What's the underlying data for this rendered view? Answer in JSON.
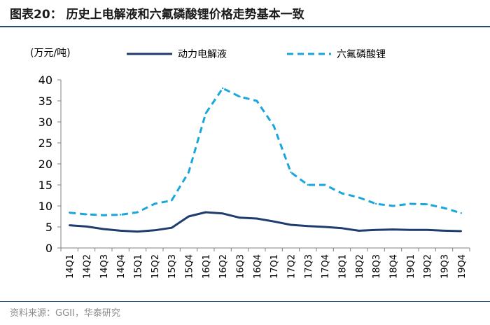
{
  "figure": {
    "title": "图表20：  历史上电解液和六氟磷酸锂价格走势基本一致",
    "source": "资料来源：GGII，华泰研究"
  },
  "chart_data": {
    "type": "line",
    "unit_label": "(万元/吨)",
    "categories": [
      "14Q1",
      "14Q2",
      "14Q3",
      "14Q4",
      "15Q1",
      "15Q2",
      "15Q3",
      "15Q4",
      "16Q1",
      "16Q2",
      "16Q3",
      "16Q4",
      "17Q1",
      "17Q2",
      "17Q3",
      "17Q4",
      "18Q1",
      "18Q2",
      "18Q3",
      "18Q4",
      "19Q1",
      "19Q2",
      "19Q3",
      "19Q4"
    ],
    "ylim": [
      0,
      40
    ],
    "yticks": [
      0,
      5,
      10,
      15,
      20,
      25,
      30,
      35,
      40
    ],
    "series": [
      {
        "name": "动力电解液",
        "color": "#1f3c6e",
        "style": "solid",
        "values": [
          5.4,
          5.1,
          4.5,
          4.1,
          3.9,
          4.2,
          4.8,
          7.5,
          8.5,
          8.2,
          7.2,
          7.0,
          6.3,
          5.5,
          5.2,
          5.0,
          4.7,
          4.1,
          4.3,
          4.4,
          4.3,
          4.3,
          4.1,
          4.0
        ]
      },
      {
        "name": "六氟磷酸锂",
        "color": "#1aa6dc",
        "style": "dashed",
        "values": [
          8.4,
          8.0,
          7.8,
          7.9,
          8.5,
          10.5,
          11.3,
          18.0,
          32.0,
          38.0,
          36.0,
          35.0,
          29.0,
          18.0,
          15.0,
          15.0,
          13.0,
          12.0,
          10.5,
          10.0,
          10.5,
          10.4,
          9.5,
          8.3
        ]
      }
    ]
  }
}
